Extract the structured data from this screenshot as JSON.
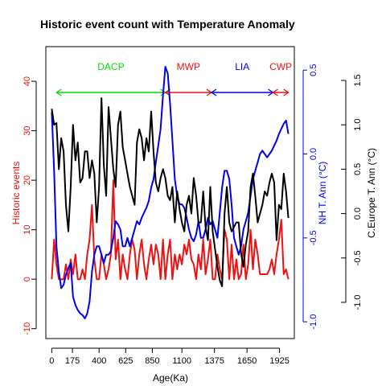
{
  "chart_data": {
    "type": "line",
    "title": "Historic event count with Temperature Anomaly",
    "xlabel": "Age(Ka)",
    "x_ticks": [
      0,
      175,
      400,
      625,
      850,
      1100,
      1375,
      1650,
      1925
    ],
    "xlim": [
      -50,
      2050
    ],
    "colors": {
      "red": "#ee1111",
      "blue": "#0000ee",
      "black": "#000000",
      "green": "#00dd00"
    },
    "axes": {
      "left": {
        "label": "Historic events",
        "ticks": [
          -10,
          0,
          10,
          20,
          30,
          40
        ],
        "lim": [
          -12,
          47
        ],
        "color": "red"
      },
      "right": {
        "label": "NH T. Ann (°C)",
        "ticks": [
          "-1.0",
          "-0.5",
          "0.0",
          "0.5"
        ],
        "tick_values": [
          -1.0,
          -0.5,
          0.0,
          0.5
        ],
        "lim": [
          -1.1,
          0.64
        ],
        "color": "blue"
      },
      "outer": {
        "label": "C.Europe T. Ann (°C)",
        "ticks": [
          "-1.0",
          "-0.5",
          "0.0",
          "0.5",
          "1.0",
          "1.5"
        ],
        "tick_values": [
          -1.0,
          -0.5,
          0.0,
          0.5,
          1.0,
          1.5
        ],
        "lim": [
          -1.0,
          1.5
        ],
        "color": "black"
      }
    },
    "periods": [
      {
        "name": "DACP",
        "start": 40,
        "end": 960,
        "color": "green"
      },
      {
        "name": "MWP",
        "start": 960,
        "end": 1350,
        "color": "red"
      },
      {
        "name": "LIA",
        "start": 1350,
        "end": 1870,
        "color": "blue"
      },
      {
        "name": "CWP",
        "start": 1870,
        "end": 2000,
        "color": "red"
      }
    ],
    "series": [
      {
        "axis": "left",
        "color": "red",
        "x": [
          0,
          20,
          40,
          60,
          80,
          100,
          120,
          140,
          160,
          180,
          200,
          220,
          240,
          260,
          280,
          300,
          320,
          340,
          360,
          380,
          400,
          420,
          440,
          460,
          480,
          500,
          520,
          540,
          560,
          580,
          600,
          620,
          640,
          660,
          680,
          700,
          720,
          740,
          760,
          780,
          800,
          820,
          840,
          860,
          880,
          900,
          920,
          940,
          960,
          980,
          1000,
          1020,
          1040,
          1060,
          1080,
          1100,
          1120,
          1140,
          1160,
          1180,
          1200,
          1220,
          1240,
          1260,
          1280,
          1300,
          1320,
          1340,
          1360,
          1380,
          1400,
          1420,
          1440,
          1460,
          1480,
          1500,
          1520,
          1540,
          1560,
          1580,
          1600,
          1620,
          1640,
          1660,
          1680,
          1700,
          1720,
          1740,
          1760,
          1780,
          1800,
          1820,
          1840,
          1860,
          1880,
          1900,
          1920,
          1940,
          1960,
          1980,
          2000
        ],
        "y": [
          0,
          8,
          3,
          0,
          0,
          0,
          3,
          0,
          4,
          1,
          5,
          0,
          0,
          2,
          0,
          5,
          8,
          15,
          4,
          0,
          0,
          5,
          3,
          0,
          2,
          5,
          20,
          4,
          8,
          0,
          5,
          2,
          0,
          5,
          8,
          6,
          0,
          5,
          8,
          3,
          0,
          4,
          7,
          3,
          7,
          5,
          0,
          8,
          0,
          5,
          8,
          0,
          5,
          2,
          5,
          3,
          7,
          5,
          8,
          4,
          3,
          0,
          5,
          2,
          8,
          1,
          4,
          8,
          0,
          0,
          5,
          2,
          0,
          10,
          8,
          0,
          7,
          0,
          4,
          0,
          1,
          7,
          0,
          3,
          10,
          2,
          8,
          5,
          1,
          1,
          1,
          1,
          2,
          4,
          1,
          5,
          8,
          12,
          1,
          2,
          0
        ]
      },
      {
        "axis": "right",
        "color": "blue",
        "x": [
          0,
          20,
          40,
          60,
          80,
          100,
          120,
          140,
          160,
          180,
          200,
          220,
          240,
          260,
          280,
          300,
          320,
          340,
          360,
          380,
          400,
          420,
          440,
          460,
          480,
          500,
          520,
          540,
          560,
          580,
          600,
          620,
          640,
          660,
          680,
          700,
          720,
          740,
          760,
          780,
          800,
          820,
          840,
          860,
          880,
          900,
          920,
          940,
          960,
          980,
          1000,
          1020,
          1040,
          1060,
          1080,
          1100,
          1120,
          1140,
          1160,
          1180,
          1200,
          1220,
          1240,
          1260,
          1280,
          1300,
          1320,
          1340,
          1360,
          1380,
          1400,
          1420,
          1440,
          1460,
          1480,
          1500,
          1520,
          1540,
          1560,
          1580,
          1600,
          1620,
          1640,
          1660,
          1680,
          1700,
          1720,
          1740,
          1760,
          1780,
          1800,
          1820,
          1840,
          1860,
          1880,
          1900,
          1920,
          1940,
          1960,
          1980,
          2000
        ],
        "y": [
          0.25,
          -0.1,
          -0.55,
          -0.7,
          -0.8,
          -0.78,
          -0.72,
          -0.68,
          -0.65,
          -0.85,
          -0.9,
          -0.93,
          -0.95,
          -0.96,
          -0.98,
          -0.95,
          -0.88,
          -0.7,
          -0.6,
          -0.55,
          -0.55,
          -0.6,
          -0.65,
          -0.6,
          -0.6,
          -0.58,
          -0.5,
          -0.4,
          -0.42,
          -0.45,
          -0.55,
          -0.55,
          -0.5,
          -0.55,
          -0.5,
          -0.45,
          -0.4,
          -0.42,
          -0.38,
          -0.35,
          -0.32,
          -0.28,
          -0.2,
          -0.15,
          -0.05,
          0.05,
          0.15,
          0.35,
          0.52,
          0.48,
          0.3,
          0.08,
          -0.15,
          -0.25,
          -0.3,
          -0.3,
          -0.32,
          -0.38,
          -0.45,
          -0.5,
          -0.52,
          -0.48,
          -0.4,
          -0.5,
          -0.5,
          -0.45,
          -0.38,
          -0.42,
          -0.4,
          -0.45,
          -0.5,
          -0.35,
          -0.2,
          -0.1,
          -0.1,
          -0.15,
          -0.3,
          -0.5,
          -0.55,
          -0.6,
          -0.55,
          -0.45,
          -0.4,
          -0.35,
          -0.25,
          -0.15,
          -0.1,
          -0.05,
          0.0,
          0.02,
          0.0,
          -0.02,
          0.0,
          0.02,
          0.05,
          0.08,
          0.12,
          0.15,
          0.18,
          0.2,
          0.12
        ]
      },
      {
        "axis": "outer",
        "color": "black",
        "x": [
          0,
          20,
          40,
          60,
          80,
          100,
          120,
          140,
          160,
          180,
          200,
          220,
          240,
          260,
          280,
          300,
          320,
          340,
          360,
          380,
          400,
          420,
          440,
          460,
          480,
          500,
          520,
          540,
          560,
          580,
          600,
          620,
          640,
          660,
          680,
          700,
          720,
          740,
          760,
          780,
          800,
          820,
          840,
          860,
          880,
          900,
          920,
          940,
          960,
          980,
          1000,
          1020,
          1040,
          1060,
          1080,
          1100,
          1120,
          1140,
          1160,
          1180,
          1200,
          1220,
          1240,
          1260,
          1280,
          1300,
          1320,
          1340,
          1360,
          1380,
          1400,
          1420,
          1440,
          1460,
          1480,
          1500,
          1520,
          1540,
          1560,
          1580,
          1600,
          1620,
          1640,
          1660,
          1680,
          1700,
          1720,
          1740,
          1760,
          1780,
          1800,
          1820,
          1840,
          1860,
          1880,
          1900,
          1920,
          1940,
          1960,
          1980,
          2000
        ],
        "y": [
          1.18,
          1.0,
          1.02,
          0.5,
          0.85,
          0.7,
          0.1,
          -0.2,
          0.3,
          1.0,
          0.6,
          0.8,
          0.35,
          0.4,
          0.7,
          0.7,
          0.4,
          0.6,
          0.45,
          -0.1,
          0.3,
          1.3,
          0.55,
          0.2,
          1.2,
          0.85,
          0.5,
          0.3,
          1.0,
          1.15,
          0.75,
          0.6,
          0.45,
          0.3,
          0.2,
          0.1,
          0.8,
          0.95,
          0.85,
          0.6,
          0.85,
          0.7,
          1.15,
          0.7,
          0.35,
          0.25,
          0.4,
          0.5,
          0.4,
          0.2,
          0.15,
          0.3,
          -0.1,
          0.25,
          0.05,
          -0.1,
          -0.2,
          0.1,
          0.2,
          0.0,
          0.4,
          0.2,
          -0.1,
          -0.1,
          0.25,
          -0.15,
          -0.3,
          0.3,
          -0.2,
          -0.4,
          -0.6,
          -0.75,
          -0.82,
          0.0,
          0.3,
          -0.1,
          -0.2,
          -0.15,
          -0.1,
          -0.1,
          -0.45,
          -0.6,
          -0.35,
          -0.2,
          0.3,
          0.45,
          0.2,
          -0.1,
          0.0,
          0.1,
          0.25,
          0.2,
          0.35,
          0.45,
          0.35,
          -0.3,
          0.1,
          0.05,
          0.45,
          0.25,
          -0.05
        ]
      }
    ]
  }
}
